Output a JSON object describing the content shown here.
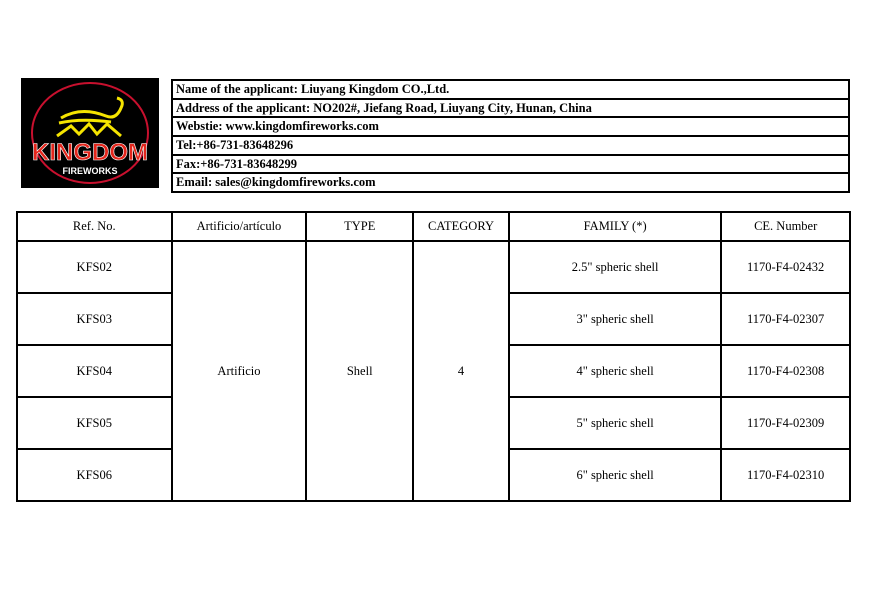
{
  "logo": {
    "text": "KINGDOM",
    "subtext": "FIREWORKS",
    "colors": {
      "ring": "#c8102e",
      "panther": "#f5e400",
      "text": "#e4261c"
    }
  },
  "applicant": [
    "Name of the applicant: Liuyang Kingdom CO.,Ltd.",
    "Address of the applicant: NO202#, Jiefang Road, Liuyang City, Hunan, China",
    "Webstie: www.kingdomfireworks.com",
    "Tel:+86-731-83648296",
    "Fax:+86-731-83648299",
    "Email: sales@kingdomfireworks.com"
  ],
  "table": {
    "headers": [
      "Ref. No.",
      "Artificio/artículo",
      "TYPE",
      "CATEGORY",
      "FAMILY (*)",
      "CE. Number"
    ],
    "artificio": "Artificio",
    "type": "Shell",
    "category": "4",
    "rows": [
      {
        "ref": "KFS02",
        "family": "2.5\" spheric shell",
        "ce": "1170-F4-02432"
      },
      {
        "ref": "KFS03",
        "family": "3\" spheric shell",
        "ce": "1170-F4-02307"
      },
      {
        "ref": "KFS04",
        "family": "4\" spheric shell",
        "ce": "1170-F4-02308"
      },
      {
        "ref": "KFS05",
        "family": "5\" spheric shell",
        "ce": "1170-F4-02309"
      },
      {
        "ref": "KFS06",
        "family": "6\" spheric shell",
        "ce": "1170-F4-02310"
      }
    ]
  }
}
